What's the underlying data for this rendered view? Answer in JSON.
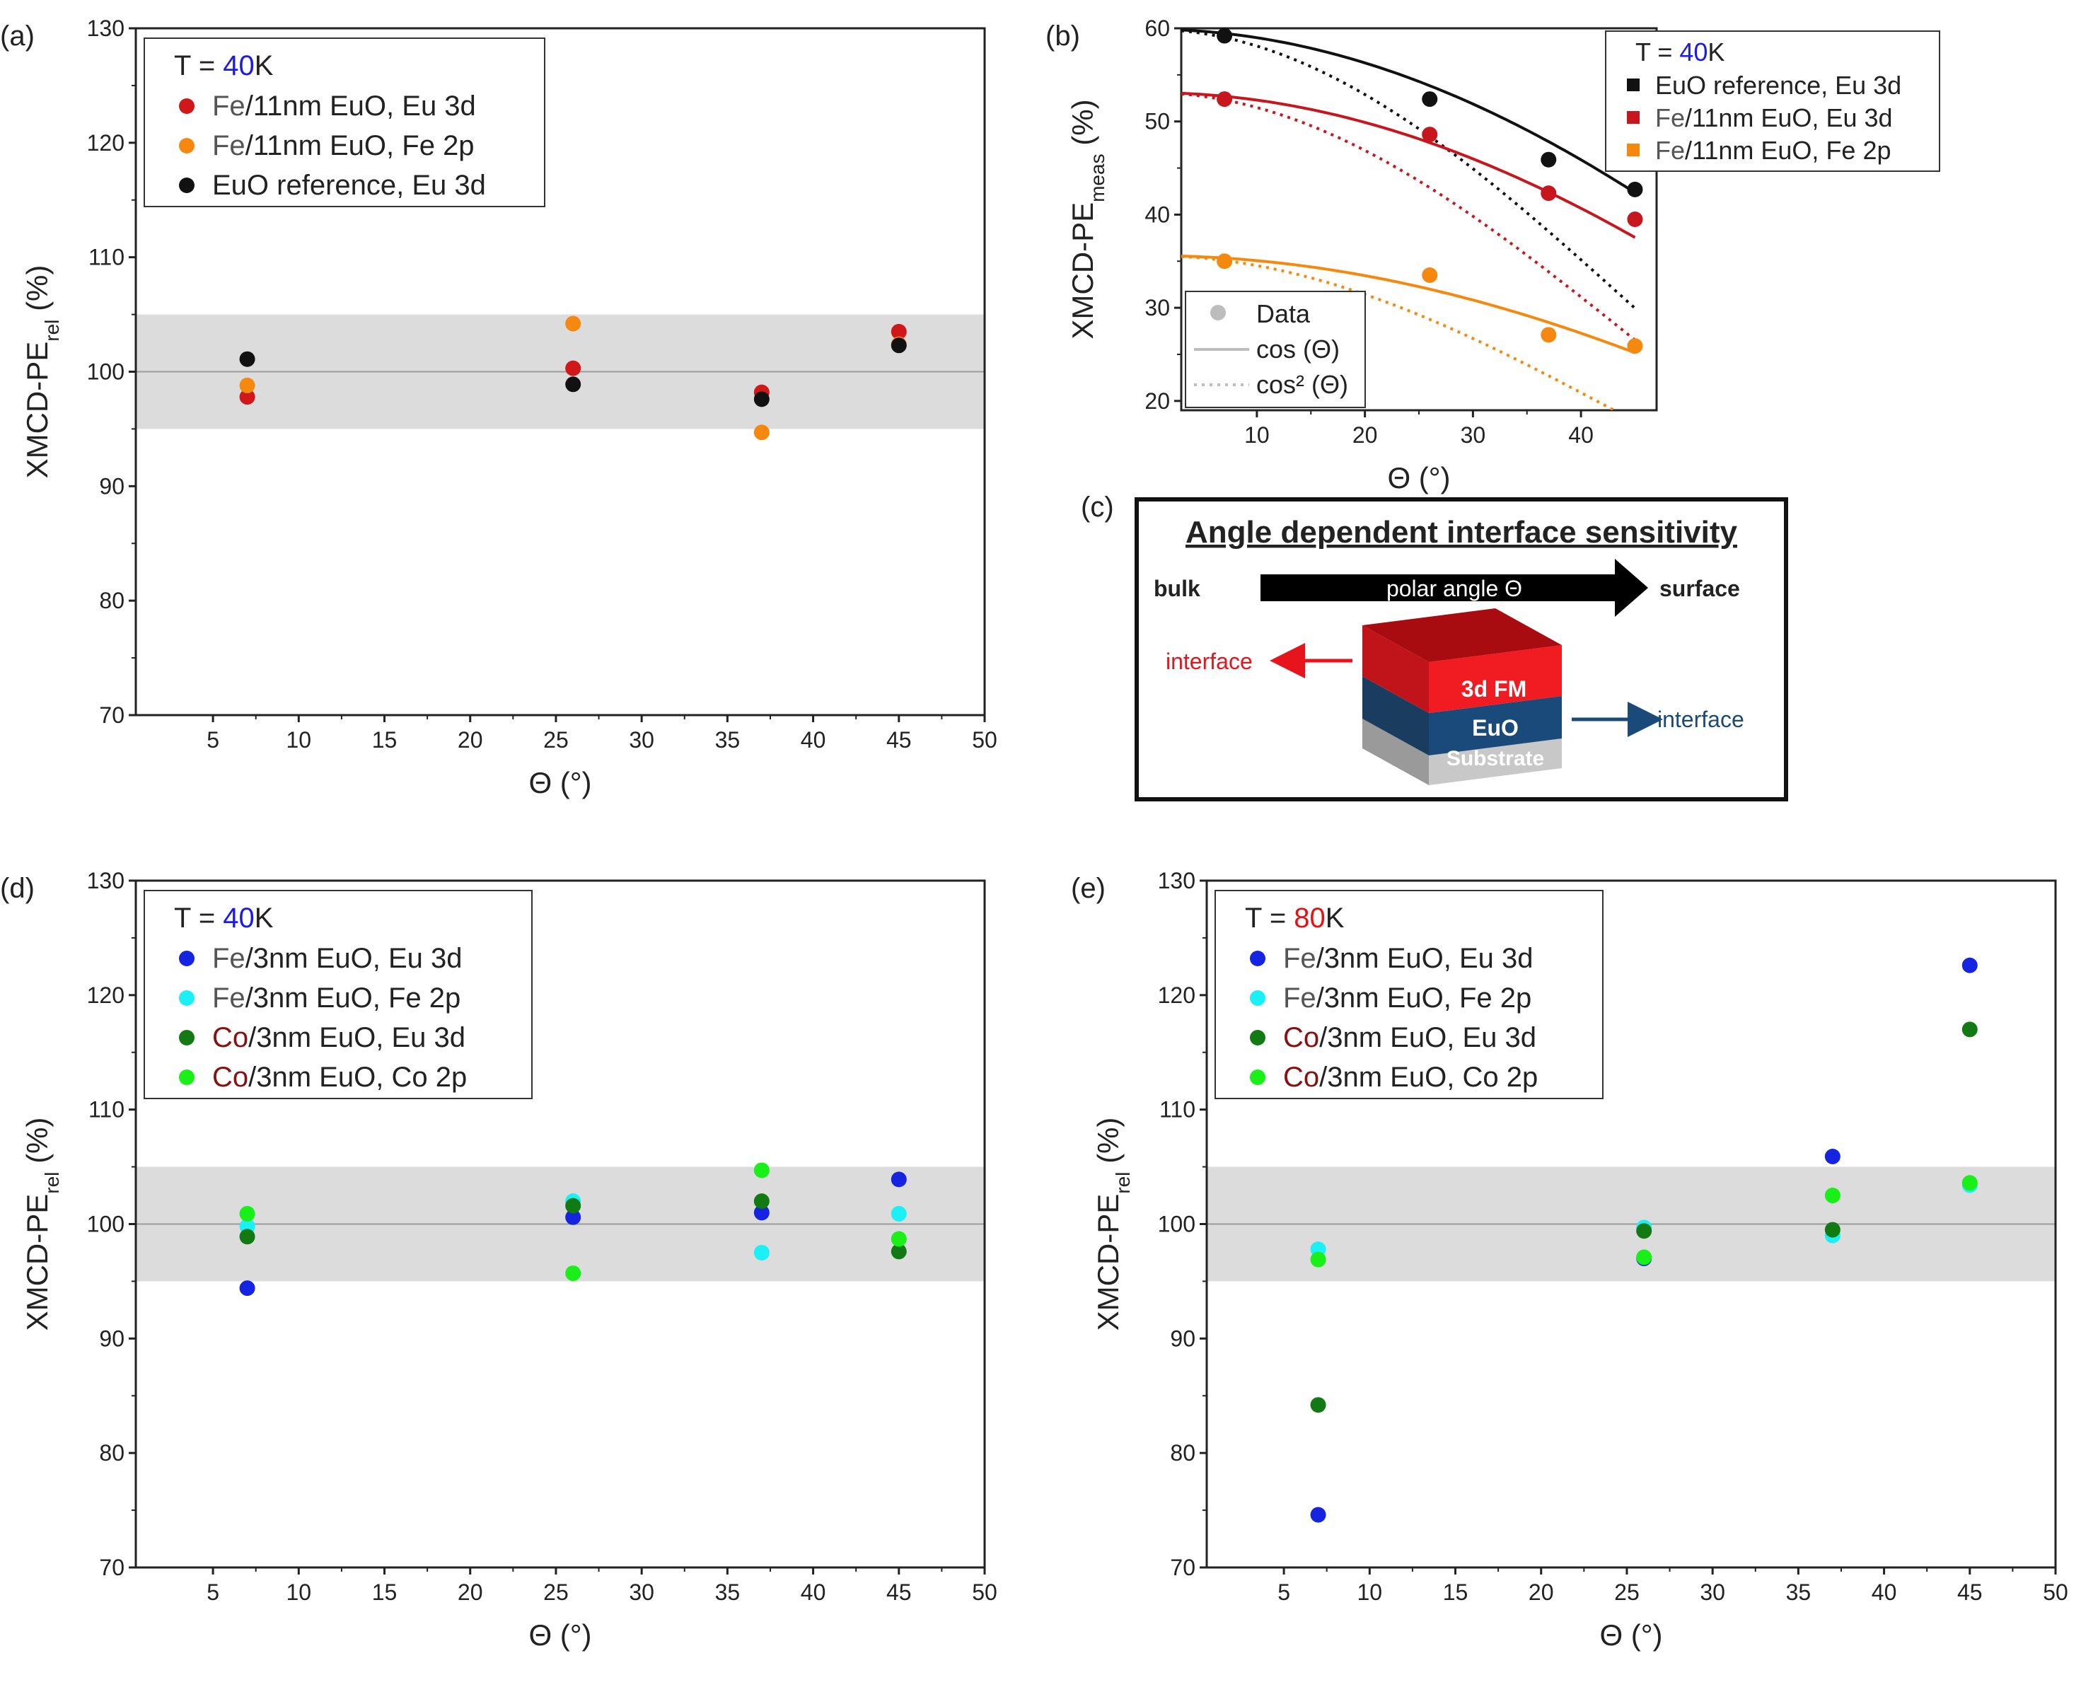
{
  "panels": {
    "a": {
      "label": "(a)",
      "xlabel": "Θ (°)",
      "ylabel_main": "XMCD-PE",
      "ylabel_sub": "rel",
      "ylabel_unit": " (%)",
      "xlim": [
        0.5,
        50
      ],
      "ylim": [
        70,
        130
      ],
      "xticks": [
        5,
        10,
        15,
        20,
        25,
        30,
        35,
        40,
        45,
        50
      ],
      "yticks": [
        70,
        80,
        90,
        100,
        110,
        120,
        130
      ],
      "band": [
        95,
        105
      ],
      "ref_line": 100,
      "legend_title": {
        "prefix": "T = ",
        "value": "40",
        "suffix": "K",
        "value_color": "#1a1af0"
      },
      "series": [
        {
          "prefix": "Fe",
          "text": "/11nm EuO, Eu 3d",
          "prefix_color": "#555555",
          "color": "#d01818",
          "x": [
            7,
            26,
            37,
            45
          ],
          "y": [
            97.8,
            100.3,
            98.2,
            103.5
          ]
        },
        {
          "prefix": "Fe",
          "text": "/11nm EuO, Fe 2p",
          "prefix_color": "#555555",
          "color": "#f5890f",
          "x": [
            7,
            26,
            37,
            45
          ],
          "y": [
            98.8,
            104.2,
            94.7,
            102.4
          ]
        },
        {
          "prefix": "",
          "text": "EuO reference, Eu 3d",
          "prefix_color": "#222222",
          "color": "#111111",
          "x": [
            7,
            26,
            37,
            45
          ],
          "y": [
            101.1,
            98.9,
            97.6,
            102.3
          ]
        }
      ]
    },
    "b": {
      "label": "(b)",
      "xlabel": "Θ (°)",
      "ylabel_main": "XMCD-PE",
      "ylabel_sub": "meas",
      "ylabel_unit": " (%)",
      "xlim": [
        3,
        47
      ],
      "ylim": [
        19,
        60
      ],
      "xticks": [
        10,
        20,
        30,
        40
      ],
      "yticks": [
        20,
        30,
        40,
        50,
        60
      ],
      "legend_title": {
        "prefix": "T = ",
        "value": "40",
        "suffix": "K",
        "value_color": "#1a1af0"
      },
      "series": [
        {
          "prefix": "",
          "text": "EuO reference, Eu 3d",
          "prefix_color": "#222222",
          "color": "#111111",
          "x": [
            7,
            26,
            37,
            45
          ],
          "y": [
            59.2,
            52.4,
            45.9,
            42.7
          ],
          "fit_amp": 59.9
        },
        {
          "prefix": "Fe",
          "text": "/11nm EuO, Eu 3d",
          "prefix_color": "#555555",
          "color": "#c8161e",
          "x": [
            7,
            26,
            37,
            45
          ],
          "y": [
            52.4,
            48.6,
            42.3,
            39.5
          ],
          "fit_amp": 53.1
        },
        {
          "prefix": "Fe",
          "text": "/11nm EuO, Fe 2p",
          "prefix_color": "#555555",
          "color": "#f5890f",
          "x": [
            7,
            26,
            37,
            45
          ],
          "y": [
            35.0,
            33.5,
            27.1,
            25.9
          ],
          "fit_amp": 35.6
        }
      ],
      "legend2": [
        "Data",
        "cos (Θ)",
        "cos² (Θ)"
      ]
    },
    "c": {
      "label": "(c)",
      "title": "Angle dependent interface sensitivity",
      "bulk": "bulk",
      "arrow_text": "polar angle Θ",
      "surface": "surface",
      "interface_left": "interface",
      "interface_right": "interface",
      "layer_top": "3d FM",
      "layer_mid": "EuO",
      "layer_bot": "Substrate",
      "colors": {
        "red": "#e8141c",
        "navy": "#1a4a7a",
        "arrow_red": "#e8141c",
        "arrow_navy": "#1a4a7a"
      }
    },
    "d": {
      "label": "(d)",
      "xlabel": "Θ (°)",
      "ylabel_main": "XMCD-PE",
      "ylabel_sub": "rel",
      "ylabel_unit": " (%)",
      "xlim": [
        0.5,
        50
      ],
      "ylim": [
        70,
        130
      ],
      "xticks": [
        5,
        10,
        15,
        20,
        25,
        30,
        35,
        40,
        45,
        50
      ],
      "yticks": [
        70,
        80,
        90,
        100,
        110,
        120,
        130
      ],
      "band": [
        95,
        105
      ],
      "ref_line": 100,
      "legend_title": {
        "prefix": "T = ",
        "value": "40",
        "suffix": "K",
        "value_color": "#1a1af0"
      },
      "series": [
        {
          "prefix": "Fe",
          "text": "/3nm EuO, Eu 3d",
          "prefix_color": "#555555",
          "color": "#1424e0",
          "x": [
            7,
            26,
            37,
            45
          ],
          "y": [
            94.4,
            100.6,
            101.0,
            103.9
          ]
        },
        {
          "prefix": "Fe",
          "text": "/3nm EuO, Fe 2p",
          "prefix_color": "#555555",
          "color": "#1af0f5",
          "x": [
            7,
            26,
            37,
            45
          ],
          "y": [
            99.8,
            102.0,
            97.5,
            100.9
          ]
        },
        {
          "prefix": "Co",
          "text": "/3nm EuO, Eu 3d",
          "prefix_color": "#8a1010",
          "color": "#127a12",
          "x": [
            7,
            26,
            37,
            45
          ],
          "y": [
            98.9,
            101.6,
            102.0,
            97.6
          ]
        },
        {
          "prefix": "Co",
          "text": "/3nm EuO, Co 2p",
          "prefix_color": "#8a1010",
          "color": "#18f018",
          "x": [
            7,
            26,
            37,
            45
          ],
          "y": [
            100.9,
            95.7,
            104.7,
            98.7
          ]
        }
      ]
    },
    "e": {
      "label": "(e)",
      "xlabel": "Θ (°)",
      "ylabel_main": "XMCD-PE",
      "ylabel_sub": "rel",
      "ylabel_unit": " (%)",
      "xlim": [
        0.5,
        50
      ],
      "ylim": [
        70,
        130
      ],
      "xticks": [
        5,
        10,
        15,
        20,
        25,
        30,
        35,
        40,
        45,
        50
      ],
      "yticks": [
        70,
        80,
        90,
        100,
        110,
        120,
        130
      ],
      "band": [
        95,
        105
      ],
      "ref_line": 100,
      "legend_title": {
        "prefix": "T = ",
        "value": "80",
        "suffix": "K",
        "value_color": "#e81010"
      },
      "series": [
        {
          "prefix": "Fe",
          "text": "/3nm EuO, Eu 3d",
          "prefix_color": "#555555",
          "color": "#1424e0",
          "x": [
            7,
            26,
            37,
            45
          ],
          "y": [
            74.6,
            97.0,
            105.9,
            122.6
          ]
        },
        {
          "prefix": "Fe",
          "text": "/3nm EuO, Fe 2p",
          "prefix_color": "#555555",
          "color": "#1af0f5",
          "x": [
            7,
            26,
            37,
            45
          ],
          "y": [
            97.8,
            99.7,
            99.0,
            103.4
          ]
        },
        {
          "prefix": "Co",
          "text": "/3nm EuO, Eu 3d",
          "prefix_color": "#8a1010",
          "color": "#127a12",
          "x": [
            7,
            26,
            37,
            45
          ],
          "y": [
            84.2,
            99.4,
            99.5,
            117.0
          ]
        },
        {
          "prefix": "Co",
          "text": "/3nm EuO, Co 2p",
          "prefix_color": "#8a1010",
          "color": "#18f018",
          "x": [
            7,
            26,
            37,
            45
          ],
          "y": [
            96.9,
            97.1,
            102.5,
            103.6
          ]
        }
      ]
    }
  },
  "chart_data": [
    {
      "type": "scatter",
      "panel": "a",
      "xlabel": "Θ (°)",
      "ylabel": "XMCD-PE_rel (%)",
      "xlim": [
        0.5,
        50
      ],
      "ylim": [
        70,
        130
      ],
      "series": [
        {
          "name": "Fe/11nm EuO, Eu 3d",
          "x": [
            7,
            26,
            37,
            45
          ],
          "y": [
            97.8,
            100.3,
            98.2,
            103.5
          ]
        },
        {
          "name": "Fe/11nm EuO, Fe 2p",
          "x": [
            7,
            26,
            37,
            45
          ],
          "y": [
            98.8,
            104.2,
            94.7,
            102.4
          ]
        },
        {
          "name": "EuO reference, Eu 3d",
          "x": [
            7,
            26,
            37,
            45
          ],
          "y": [
            101.1,
            98.9,
            97.6,
            102.3
          ]
        }
      ]
    },
    {
      "type": "scatter",
      "panel": "b",
      "xlabel": "Θ (°)",
      "ylabel": "XMCD-PE_meas (%)",
      "xlim": [
        3,
        47
      ],
      "ylim": [
        19,
        60
      ],
      "series": [
        {
          "name": "EuO reference, Eu 3d",
          "x": [
            7,
            26,
            37,
            45
          ],
          "y": [
            59.2,
            52.4,
            45.9,
            42.7
          ]
        },
        {
          "name": "Fe/11nm EuO, Eu 3d",
          "x": [
            7,
            26,
            37,
            45
          ],
          "y": [
            52.4,
            48.6,
            42.3,
            39.5
          ]
        },
        {
          "name": "Fe/11nm EuO, Fe 2p",
          "x": [
            7,
            26,
            37,
            45
          ],
          "y": [
            35.0,
            33.5,
            27.1,
            25.9
          ]
        }
      ],
      "fits": [
        "cos (Θ)",
        "cos² (Θ)"
      ]
    },
    {
      "type": "scatter",
      "panel": "d",
      "xlabel": "Θ (°)",
      "ylabel": "XMCD-PE_rel (%)",
      "xlim": [
        0.5,
        50
      ],
      "ylim": [
        70,
        130
      ],
      "series": [
        {
          "name": "Fe/3nm EuO, Eu 3d",
          "x": [
            7,
            26,
            37,
            45
          ],
          "y": [
            94.4,
            100.6,
            101.0,
            103.9
          ]
        },
        {
          "name": "Fe/3nm EuO, Fe 2p",
          "x": [
            7,
            26,
            37,
            45
          ],
          "y": [
            99.8,
            102.0,
            97.5,
            100.9
          ]
        },
        {
          "name": "Co/3nm EuO, Eu 3d",
          "x": [
            7,
            26,
            37,
            45
          ],
          "y": [
            98.9,
            101.6,
            102.0,
            97.6
          ]
        },
        {
          "name": "Co/3nm EuO, Co 2p",
          "x": [
            7,
            26,
            37,
            45
          ],
          "y": [
            100.9,
            95.7,
            104.7,
            98.7
          ]
        }
      ]
    },
    {
      "type": "scatter",
      "panel": "e",
      "xlabel": "Θ (°)",
      "ylabel": "XMCD-PE_rel (%)",
      "xlim": [
        0.5,
        50
      ],
      "ylim": [
        70,
        130
      ],
      "series": [
        {
          "name": "Fe/3nm EuO, Eu 3d",
          "x": [
            7,
            26,
            37,
            45
          ],
          "y": [
            74.6,
            97.0,
            105.9,
            122.6
          ]
        },
        {
          "name": "Fe/3nm EuO, Fe 2p",
          "x": [
            7,
            26,
            37,
            45
          ],
          "y": [
            97.8,
            99.7,
            99.0,
            103.4
          ]
        },
        {
          "name": "Co/3nm EuO, Eu 3d",
          "x": [
            7,
            26,
            37,
            45
          ],
          "y": [
            84.2,
            99.4,
            99.5,
            117.0
          ]
        },
        {
          "name": "Co/3nm EuO, Co 2p",
          "x": [
            7,
            26,
            37,
            45
          ],
          "y": [
            96.9,
            97.1,
            102.5,
            103.6
          ]
        }
      ]
    }
  ]
}
